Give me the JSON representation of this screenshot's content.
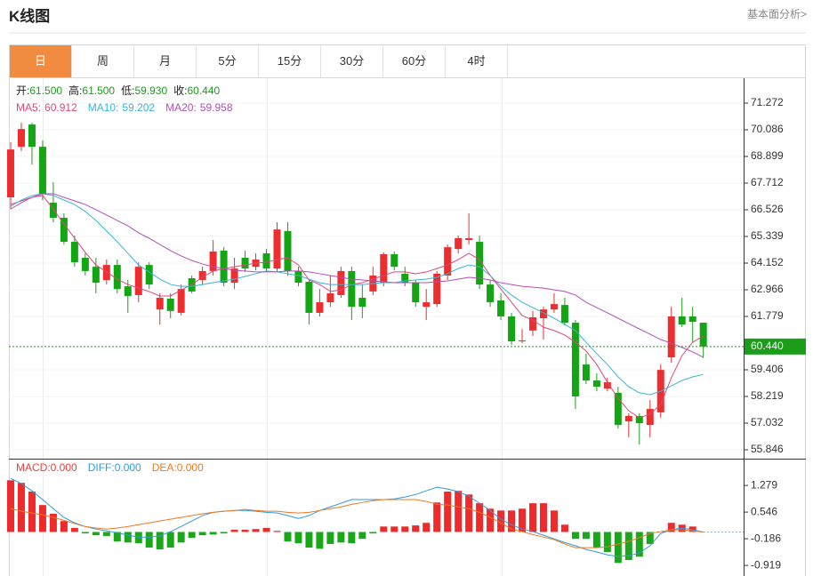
{
  "header": {
    "title": "K线图",
    "link": "基本面分析>"
  },
  "tabs": [
    {
      "label": "日",
      "active": true
    },
    {
      "label": "周",
      "active": false
    },
    {
      "label": "月",
      "active": false
    },
    {
      "label": "5分",
      "active": false
    },
    {
      "label": "15分",
      "active": false
    },
    {
      "label": "30分",
      "active": false
    },
    {
      "label": "60分",
      "active": false
    },
    {
      "label": "4时",
      "active": false
    }
  ],
  "chart_data": [
    {
      "type": "candlestick",
      "summary": [
        {
          "label": "开:",
          "text": "61.500"
        },
        {
          "label": "高:",
          "text": "61.500"
        },
        {
          "label": "低:",
          "text": "59.930"
        },
        {
          "label": "收:",
          "text": "60.440"
        }
      ],
      "summary_color": "#1a9e1a",
      "up_color": "#ee2e2e",
      "down_color": "#14a514",
      "open": [
        67.08,
        69.33,
        70.32,
        69.33,
        66.84,
        66.17,
        65.1,
        64.39,
        63.99,
        63.4,
        64.07,
        63.12,
        62.73,
        64.07,
        62.09,
        62.57,
        61.94,
        63.48,
        63.4,
        63.8,
        64.71,
        63.28,
        64.39,
        63.99,
        64.59,
        63.91,
        65.58,
        63.8,
        63.32,
        61.94,
        62.41,
        62.73,
        63.8,
        62.61,
        62.89,
        63.28,
        64.55,
        63.68,
        63.28,
        62.21,
        62.33,
        63.6,
        64.78,
        65.18,
        65.1,
        63.2,
        62.49,
        61.78,
        60.67,
        61.15,
        61.7,
        62.09,
        62.29,
        61.5,
        59.64,
        58.93,
        58.57,
        58.38,
        57.11,
        57.35,
        56.95,
        57.51,
        59.96,
        61.78,
        61.78,
        61.5
      ],
      "high": [
        69.53,
        70.4,
        70.4,
        69.61,
        67.75,
        66.37,
        65.38,
        64.59,
        64.39,
        64.31,
        64.31,
        63.4,
        64.19,
        64.19,
        62.81,
        62.81,
        63.2,
        63.6,
        63.99,
        65.18,
        64.86,
        64.39,
        64.71,
        64.59,
        64.78,
        65.97,
        65.97,
        63.99,
        63.4,
        63.0,
        63.6,
        63.99,
        63.99,
        63.2,
        63.99,
        64.63,
        64.67,
        63.99,
        63.4,
        63.0,
        63.8,
        64.98,
        65.38,
        66.37,
        65.38,
        63.4,
        62.81,
        61.94,
        61.22,
        62.02,
        62.21,
        62.81,
        62.61,
        61.62,
        60.12,
        59.25,
        59.05,
        58.65,
        57.47,
        57.47,
        58.06,
        59.64,
        62.21,
        62.61,
        62.21,
        61.5
      ],
      "low": [
        66.56,
        69.14,
        68.54,
        66.96,
        65.97,
        64.98,
        63.99,
        63.6,
        62.81,
        63.2,
        62.81,
        61.94,
        62.41,
        63.0,
        61.42,
        61.7,
        61.82,
        62.81,
        63.2,
        63.6,
        63.12,
        63.0,
        63.76,
        63.83,
        63.76,
        63.76,
        63.6,
        63.12,
        61.42,
        61.78,
        62.21,
        62.61,
        61.62,
        61.7,
        62.73,
        63.12,
        63.83,
        63.12,
        62.21,
        61.62,
        62.21,
        63.4,
        64.59,
        64.98,
        63.0,
        62.21,
        61.62,
        60.51,
        60.59,
        60.91,
        60.75,
        61.94,
        61.38,
        57.66,
        58.77,
        58.45,
        58.45,
        56.79,
        56.4,
        56.08,
        56.4,
        57.27,
        59.72,
        61.3,
        60.63,
        59.93
      ],
      "close": [
        69.21,
        70.12,
        69.33,
        67.24,
        66.17,
        65.1,
        64.19,
        63.8,
        63.28,
        64.07,
        63.0,
        62.69,
        63.99,
        63.2,
        62.61,
        62.02,
        63.0,
        62.89,
        63.8,
        64.67,
        63.28,
        63.91,
        63.91,
        64.31,
        63.91,
        65.65,
        63.8,
        63.28,
        61.94,
        62.41,
        62.81,
        63.8,
        62.21,
        62.21,
        63.6,
        64.55,
        63.99,
        63.28,
        62.41,
        62.41,
        63.68,
        64.86,
        65.26,
        65.26,
        63.2,
        62.41,
        61.78,
        60.67,
        60.71,
        61.74,
        62.09,
        62.33,
        61.5,
        58.22,
        58.93,
        58.65,
        58.85,
        56.95,
        57.35,
        57.03,
        57.66,
        59.4,
        61.78,
        61.42,
        61.54,
        60.44
      ],
      "series": [
        {
          "name": "MA5:",
          "legend_value": "60.912",
          "color": "#e2457c",
          "values": [
            66.76,
            66.92,
            67.08,
            67.16,
            66.56,
            65.89,
            65.26,
            64.63,
            64.07,
            63.76,
            63.44,
            63.2,
            63.04,
            62.89,
            62.69,
            62.69,
            62.96,
            63.2,
            63.52,
            63.8,
            63.91,
            63.99,
            64.07,
            64.15,
            64.19,
            64.31,
            64.39,
            64.07,
            63.4,
            63.2,
            62.89,
            62.96,
            63.2,
            63.28,
            63.44,
            63.6,
            63.76,
            63.76,
            63.68,
            63.76,
            63.91,
            64.07,
            64.31,
            64.59,
            64.31,
            63.6,
            63.0,
            62.41,
            61.82,
            61.62,
            61.3,
            61.15,
            60.95,
            60.63,
            60.24,
            59.64,
            58.85,
            58.14,
            57.58,
            57.27,
            57.43,
            57.86,
            59.05,
            60.04,
            60.63,
            60.91
          ]
        },
        {
          "name": "MA10:",
          "legend_value": "59.202",
          "color": "#36b6d8",
          "values": [
            66.68,
            66.96,
            67.16,
            67.24,
            67.16,
            66.96,
            66.76,
            66.45,
            66.05,
            65.58,
            65.1,
            64.59,
            64.07,
            63.76,
            63.44,
            63.2,
            63.12,
            63.12,
            63.2,
            63.28,
            63.36,
            63.44,
            63.56,
            63.68,
            63.8,
            63.76,
            63.68,
            63.6,
            63.44,
            63.28,
            63.2,
            63.2,
            63.2,
            63.2,
            63.24,
            63.28,
            63.28,
            63.36,
            63.4,
            63.44,
            63.52,
            63.68,
            63.91,
            64.07,
            63.99,
            63.6,
            63.12,
            62.73,
            62.41,
            62.17,
            61.94,
            61.7,
            61.42,
            61.15,
            60.63,
            60.12,
            59.64,
            59.09,
            58.65,
            58.38,
            58.3,
            58.45,
            58.69,
            58.93,
            59.09,
            59.2
          ]
        },
        {
          "name": "MA20:",
          "legend_value": "59.958",
          "color": "#b34eb8",
          "values": [
            66.56,
            66.84,
            67.08,
            67.24,
            67.24,
            67.08,
            66.92,
            66.76,
            66.53,
            66.29,
            66.05,
            65.81,
            65.5,
            65.26,
            64.98,
            64.71,
            64.47,
            64.27,
            64.11,
            63.99,
            63.91,
            63.83,
            63.8,
            63.76,
            63.76,
            63.76,
            63.8,
            63.8,
            63.76,
            63.68,
            63.6,
            63.52,
            63.44,
            63.4,
            63.36,
            63.32,
            63.28,
            63.28,
            63.28,
            63.28,
            63.32,
            63.36,
            63.44,
            63.52,
            63.48,
            63.4,
            63.28,
            63.2,
            63.12,
            63.08,
            63.04,
            62.96,
            62.89,
            62.73,
            62.41,
            62.17,
            61.94,
            61.7,
            61.46,
            61.22,
            60.99,
            60.75,
            60.59,
            60.4,
            60.2,
            59.96
          ]
        }
      ],
      "last_price": {
        "value": 60.44,
        "label": "60.440",
        "color": "#1a9e1a"
      },
      "ylim": [
        55.45,
        72.38
      ],
      "yticks": [
        71.272,
        70.086,
        68.899,
        67.712,
        66.526,
        65.339,
        64.152,
        62.966,
        61.779,
        59.406,
        58.219,
        57.032,
        55.846
      ],
      "grid": true
    },
    {
      "type": "macd",
      "series": [
        {
          "name": "MACD:",
          "legend_value": "0.000",
          "color": "#e8403a",
          "style": "histogram",
          "up_color": "#ee2a2a",
          "down_color": "#1aa81a",
          "values": [
            1.42,
            1.35,
            1.11,
            0.74,
            0.5,
            0.3,
            0.11,
            -0.04,
            -0.09,
            -0.11,
            -0.26,
            -0.29,
            -0.31,
            -0.43,
            -0.48,
            -0.43,
            -0.29,
            -0.16,
            -0.09,
            -0.07,
            -0.04,
            0.06,
            0.06,
            0.08,
            0.11,
            0.03,
            -0.26,
            -0.31,
            -0.43,
            -0.46,
            -0.33,
            -0.29,
            -0.31,
            -0.19,
            -0.04,
            0.15,
            0.15,
            0.15,
            0.18,
            0.25,
            0.81,
            1.11,
            1.13,
            1.03,
            0.79,
            0.64,
            0.59,
            0.59,
            0.64,
            0.79,
            0.79,
            0.59,
            0.2,
            -0.19,
            -0.19,
            -0.43,
            -0.55,
            -0.85,
            -0.77,
            -0.68,
            -0.33,
            0.01,
            0.25,
            0.2,
            0.15,
            0.0
          ]
        },
        {
          "name": "DIFF:",
          "legend_value": "0.000",
          "color": "#3399dd",
          "style": "line",
          "values": [
            1.47,
            1.33,
            1.13,
            0.89,
            0.64,
            0.4,
            0.25,
            0.15,
            0.08,
            0.03,
            -0.02,
            -0.09,
            -0.14,
            -0.14,
            -0.11,
            0.01,
            0.15,
            0.3,
            0.45,
            0.54,
            0.57,
            0.59,
            0.59,
            0.57,
            0.54,
            0.52,
            0.45,
            0.37,
            0.45,
            0.59,
            0.69,
            0.79,
            0.89,
            0.89,
            0.89,
            0.89,
            0.91,
            0.96,
            1.03,
            1.13,
            1.23,
            1.18,
            1.11,
            0.98,
            0.79,
            0.59,
            0.35,
            0.2,
            0.08,
            0.01,
            -0.09,
            -0.19,
            -0.29,
            -0.38,
            -0.48,
            -0.55,
            -0.63,
            -0.67,
            -0.65,
            -0.58,
            -0.38,
            -0.04,
            0.06,
            0.11,
            0.06,
            0.0
          ]
        },
        {
          "name": "DEA:",
          "legend_value": "0.000",
          "color": "#ee7722",
          "style": "line",
          "values": [
            0.64,
            0.57,
            0.52,
            0.47,
            0.4,
            0.32,
            0.23,
            0.15,
            0.11,
            0.08,
            0.11,
            0.15,
            0.2,
            0.25,
            0.3,
            0.35,
            0.4,
            0.45,
            0.5,
            0.54,
            0.57,
            0.59,
            0.62,
            0.59,
            0.57,
            0.57,
            0.54,
            0.52,
            0.54,
            0.59,
            0.64,
            0.69,
            0.76,
            0.81,
            0.86,
            0.89,
            0.89,
            0.89,
            0.89,
            0.84,
            0.76,
            0.74,
            0.69,
            0.64,
            0.54,
            0.4,
            0.25,
            0.08,
            0.01,
            -0.07,
            -0.14,
            -0.21,
            -0.33,
            -0.43,
            -0.43,
            -0.43,
            -0.41,
            -0.33,
            -0.26,
            -0.16,
            -0.04,
            0.01,
            0.06,
            0.06,
            0.03,
            0.0
          ]
        }
      ],
      "baseline": 0,
      "ylim": [
        -1.21,
        1.99
      ],
      "yticks": [
        1.279,
        0.546,
        -0.186,
        -0.919
      ]
    }
  ]
}
